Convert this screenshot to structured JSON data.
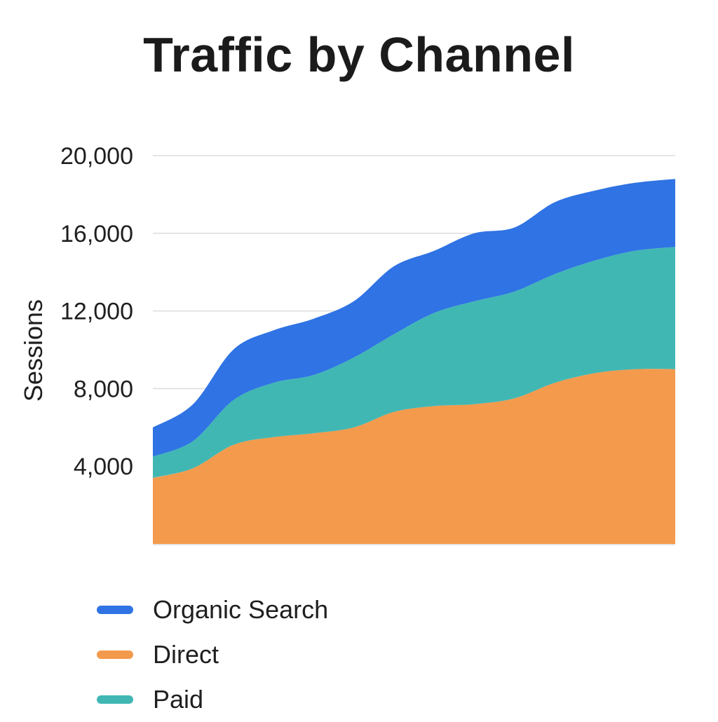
{
  "chart_data": {
    "type": "area",
    "stacked": true,
    "title": "Traffic by Channel",
    "ylabel": "Sessions",
    "xlabel": "",
    "ylim": [
      0,
      20000
    ],
    "yticks": [
      4000,
      8000,
      12000,
      16000,
      20000
    ],
    "ytick_labels": [
      "4,000",
      "8,000",
      "12,000",
      "16,000",
      "20,000"
    ],
    "grid": true,
    "legend_position": "bottom-left",
    "x": [
      1,
      2,
      3,
      4,
      5,
      6,
      7,
      8,
      9,
      10,
      11,
      12,
      13,
      14
    ],
    "series": [
      {
        "name": "Direct",
        "color": "#F39A4D",
        "values": [
          3400,
          3900,
          5100,
          5500,
          5700,
          6000,
          6800,
          7100,
          7200,
          7500,
          8300,
          8800,
          9000,
          9000
        ]
      },
      {
        "name": "Paid",
        "color": "#41B7B4",
        "values": [
          1100,
          1400,
          2300,
          2800,
          3000,
          3600,
          4000,
          4800,
          5300,
          5500,
          5600,
          5800,
          6100,
          6300
        ]
      },
      {
        "name": "Organic Search",
        "color": "#2F73E4",
        "values": [
          1500,
          1900,
          2600,
          2700,
          2900,
          2900,
          3500,
          3200,
          3500,
          3300,
          3700,
          3600,
          3500,
          3500
        ]
      }
    ]
  },
  "legend": {
    "items": [
      {
        "label": "Organic Search",
        "color": "#2F73E4"
      },
      {
        "label": "Direct",
        "color": "#F39A4D"
      },
      {
        "label": "Paid",
        "color": "#41B7B4"
      }
    ]
  }
}
